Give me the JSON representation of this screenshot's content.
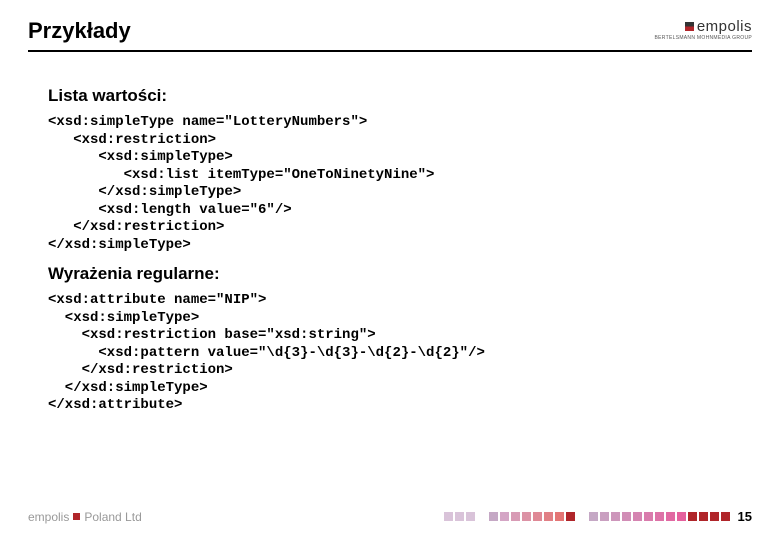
{
  "header": {
    "title": "Przykłady",
    "logo_text": "empolis",
    "logo_sub": "BERTELSMANN MOHNMEDIA GROUP"
  },
  "sections": {
    "s1_title": "Lista wartości:",
    "s1_code": "<xsd:simpleType name=\"LotteryNumbers\">\n   <xsd:restriction>\n      <xsd:simpleType>\n         <xsd:list itemType=\"OneToNinetyNine\">\n      </xsd:simpleType>\n      <xsd:length value=\"6\"/>\n   </xsd:restriction>\n</xsd:simpleType>",
    "s2_title": "Wyrażenia regularne:",
    "s2_code": "<xsd:attribute name=\"NIP\">\n  <xsd:simpleType>\n    <xsd:restriction base=\"xsd:string\">\n      <xsd:pattern value=\"\\d{3}-\\d{3}-\\d{2}-\\d{2}\"/>\n    </xsd:restriction>\n  </xsd:simpleType>\n</xsd:attribute>"
  },
  "footer": {
    "logo_text_a": "empolis",
    "logo_text_b": "Poland Ltd",
    "page": "15",
    "colors": [
      "#d9c3d9",
      "#d9c3d9",
      "#d9c3d9",
      "gap",
      "#c5a8c5",
      "#d4a5c5",
      "#d89bb5",
      "#dc92a5",
      "#df8895",
      "#e17f85",
      "#e47575",
      "#b0252a",
      "gap",
      "#c5a8c5",
      "#c99fc0",
      "#cd96bb",
      "#d18db6",
      "#d584b1",
      "#d97bac",
      "#dd72a7",
      "#e169a2",
      "#e5609d",
      "#b0252a",
      "#b0252a",
      "#b0252a",
      "#b0252a"
    ]
  }
}
